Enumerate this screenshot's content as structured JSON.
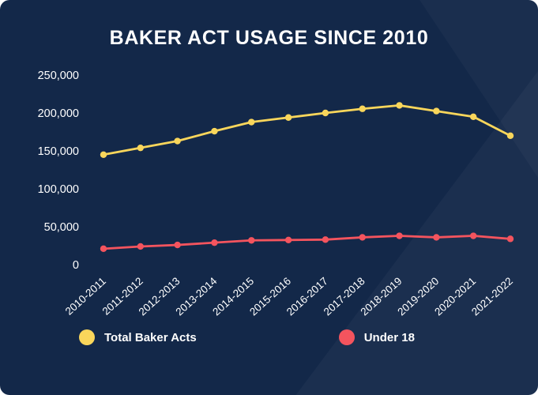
{
  "chart_data": {
    "type": "line",
    "title": "BAKER ACT USAGE SINCE 2010",
    "categories": [
      "2010-2011",
      "2011-2012",
      "2012-2013",
      "2013-2014",
      "2014-2015",
      "2015-2016",
      "2016-2017",
      "2017-2018",
      "2018-2019",
      "2019-2020",
      "2020-2021",
      "2021-2022"
    ],
    "series": [
      {
        "name": "Total Baker Acts",
        "color": "#F9D65B",
        "values": [
          145000,
          154000,
          163000,
          176000,
          188000,
          194000,
          200000,
          205500,
          210000,
          202500,
          195000,
          170000
        ]
      },
      {
        "name": "Under 18",
        "color": "#F4545E",
        "values": [
          21000,
          24000,
          26000,
          29000,
          32000,
          32500,
          33000,
          36000,
          38000,
          36000,
          38000,
          34000
        ]
      }
    ],
    "xlabel": "",
    "ylabel": "",
    "ylim": [
      0,
      250000
    ],
    "yticks": [
      {
        "value": 0,
        "label": "0"
      },
      {
        "value": 50000,
        "label": "50,000"
      },
      {
        "value": 100000,
        "label": "100,000"
      },
      {
        "value": 150000,
        "label": "150,000"
      },
      {
        "value": 200000,
        "label": "200,000"
      },
      {
        "value": 250000,
        "label": "250,000"
      }
    ],
    "grid": false,
    "legend_position": "bottom",
    "legend": [
      {
        "label": "Total Baker Acts",
        "color": "#F9D65B"
      },
      {
        "label": "Under 18",
        "color": "#F4545E"
      }
    ],
    "colors": {
      "background": "#132849",
      "text": "#FFFFFF"
    }
  }
}
